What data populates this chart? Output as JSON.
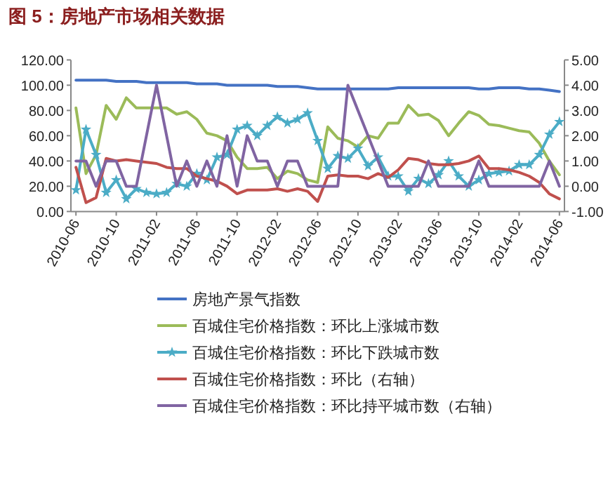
{
  "chart_data": {
    "type": "line",
    "title": "图 5：房地产市场相关数据",
    "categories": [
      "2010-06",
      null,
      null,
      null,
      "2010-10",
      null,
      null,
      null,
      "2011-02",
      null,
      null,
      null,
      "2011-06",
      null,
      null,
      null,
      "2011-10",
      null,
      null,
      null,
      "2012-02",
      null,
      null,
      null,
      "2012-06",
      null,
      null,
      null,
      "2012-10",
      null,
      null,
      null,
      "2013-02",
      null,
      null,
      null,
      "2013-06",
      null,
      null,
      null,
      "2013-10",
      null,
      null,
      null,
      "2014-02",
      null,
      null,
      null,
      "2014-06"
    ],
    "ylim": [
      0,
      120
    ],
    "yticks": [
      {
        "value": 0,
        "label": "0.00"
      },
      {
        "value": 20,
        "label": "20.00"
      },
      {
        "value": 40,
        "label": "40.00"
      },
      {
        "value": 60,
        "label": "60.00"
      },
      {
        "value": 80,
        "label": "80.00"
      },
      {
        "value": 100,
        "label": "100.00"
      },
      {
        "value": 120,
        "label": "120.00"
      }
    ],
    "y2lim": [
      -1,
      5
    ],
    "y2ticks": [
      {
        "value": -1,
        "label": "-1.00"
      },
      {
        "value": 0,
        "label": "0.00"
      },
      {
        "value": 1,
        "label": "1.00"
      },
      {
        "value": 2,
        "label": "2.00"
      },
      {
        "value": 3,
        "label": "3.00"
      },
      {
        "value": 4,
        "label": "4.00"
      },
      {
        "value": 5,
        "label": "5.00"
      }
    ],
    "legend": "bottom",
    "grid": false,
    "series": [
      {
        "name": "房地产景气指数",
        "color": "#4472c4",
        "values": [
          104,
          104,
          104,
          104,
          103,
          103,
          103,
          102,
          102,
          102,
          102,
          102,
          101,
          101,
          101,
          100,
          100,
          100,
          100,
          100,
          99,
          99,
          99,
          98,
          97,
          97,
          97,
          97,
          97,
          97,
          97,
          97,
          98,
          98,
          98,
          98,
          98,
          98,
          98,
          98,
          97,
          97,
          98,
          98,
          98,
          97,
          97,
          96,
          95
        ]
      },
      {
        "name": "百城住宅价格指数：环比上涨城市数",
        "color": "#9bbb59",
        "values": [
          82,
          30,
          45,
          84,
          73,
          90,
          82,
          82,
          82,
          82,
          77,
          79,
          73,
          62,
          60,
          56,
          43,
          34,
          34,
          35,
          26,
          32,
          30,
          25,
          23,
          67,
          58,
          56,
          51,
          60,
          58,
          70,
          70,
          84,
          76,
          77,
          72,
          60,
          70,
          79,
          76,
          69,
          68,
          66,
          64,
          63,
          54,
          40,
          29
        ]
      },
      {
        "name": "百城住宅价格指数：环比下跌城市数",
        "color": "#4bacc6",
        "marker": "star",
        "values": [
          17,
          65,
          45,
          15,
          25,
          10,
          18,
          15,
          14,
          15,
          22,
          20,
          30,
          25,
          43,
          45,
          65,
          68,
          60,
          68,
          75,
          70,
          73,
          78,
          56,
          34,
          44,
          42,
          50,
          36,
          43,
          28,
          28,
          16,
          26,
          22,
          29,
          40,
          28,
          20,
          25,
          30,
          31,
          32,
          37,
          37,
          45,
          61,
          71
        ]
      },
      {
        "name": "百城住宅价格指数：环比（右轴）",
        "color": "#c0504d",
        "axis": "y2",
        "values": [
          0.75,
          -0.65,
          -0.45,
          1.1,
          1.0,
          1.05,
          1.0,
          0.95,
          0.9,
          0.75,
          0.7,
          0.7,
          0.4,
          0.3,
          0.2,
          0.0,
          -0.3,
          -0.15,
          -0.15,
          -0.15,
          -0.1,
          -0.2,
          -0.1,
          -0.2,
          -0.6,
          0.4,
          0.45,
          0.4,
          0.4,
          0.3,
          0.5,
          0.35,
          0.65,
          1.1,
          1.05,
          0.9,
          0.85,
          0.85,
          0.9,
          1.0,
          1.2,
          0.7,
          0.7,
          0.65,
          0.55,
          0.4,
          0.15,
          -0.3,
          -0.5
        ]
      },
      {
        "name": "百城住宅价格指数：环比持平城市数（右轴）",
        "color": "#8064a2",
        "axis": "y2",
        "values": [
          1,
          1,
          0,
          1,
          1,
          0,
          0,
          2,
          4,
          2,
          0,
          1,
          0,
          1,
          0,
          2,
          0,
          2,
          1,
          1,
          0,
          1,
          1,
          0,
          0,
          0,
          0,
          4,
          3,
          2,
          1,
          0,
          0,
          0,
          0,
          1,
          0,
          0,
          0,
          0,
          1,
          0,
          0,
          0,
          0,
          0,
          0,
          1,
          0
        ]
      }
    ]
  }
}
